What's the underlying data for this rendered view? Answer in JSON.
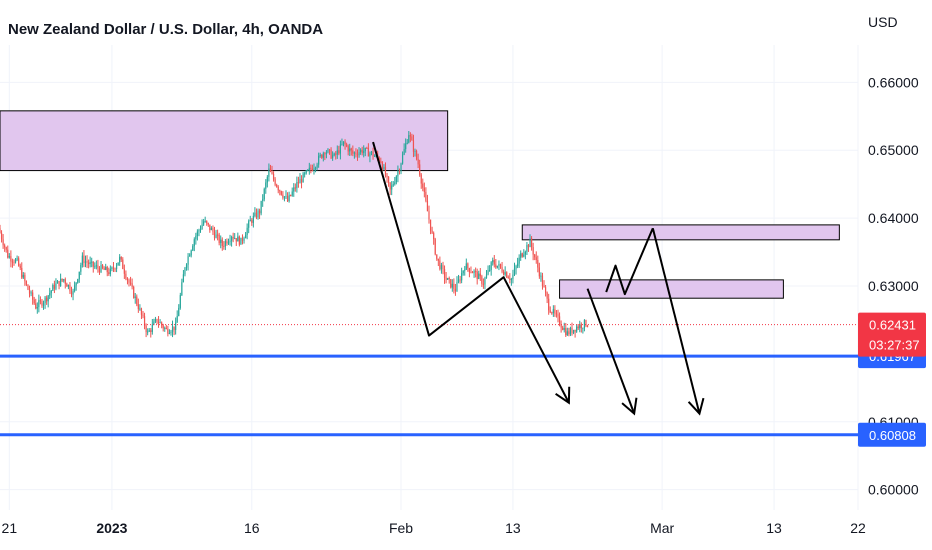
{
  "chart_data": {
    "type": "candlestick",
    "title": "New Zealand Dollar / U.S. Dollar, 4h, OANDA",
    "currency": "USD",
    "y_ticks": [
      "0.66000",
      "0.65000",
      "0.64000",
      "0.63000",
      "0.61000",
      "0.60000"
    ],
    "y_range": [
      0.597,
      0.6655
    ],
    "x_ticks": [
      {
        "label": "21",
        "date": "2022-12-21"
      },
      {
        "label": "2023",
        "date": "2023-01-01"
      },
      {
        "label": "16",
        "date": "2023-01-16"
      },
      {
        "label": "Feb",
        "date": "2023-02-01"
      },
      {
        "label": "13",
        "date": "2023-02-13"
      },
      {
        "label": "Mar",
        "date": "2023-03-01"
      },
      {
        "label": "13",
        "date": "2023-03-13"
      },
      {
        "label": "22",
        "date": "2023-03-22"
      }
    ],
    "x_range": [
      "2022-12-20",
      "2023-03-22"
    ],
    "price_path": [
      [
        "2022-12-20",
        0.6385
      ],
      [
        "2022-12-21",
        0.6345
      ],
      [
        "2022-12-22",
        0.6335
      ],
      [
        "2022-12-23",
        0.63
      ],
      [
        "2022-12-24",
        0.627
      ],
      [
        "2022-12-25",
        0.628
      ],
      [
        "2022-12-26",
        0.63
      ],
      [
        "2022-12-27",
        0.631
      ],
      [
        "2022-12-28",
        0.629
      ],
      [
        "2022-12-29",
        0.634
      ],
      [
        "2022-12-30",
        0.633
      ],
      [
        "2023-01-01",
        0.632
      ],
      [
        "2023-01-02",
        0.634
      ],
      [
        "2023-01-03",
        0.6305
      ],
      [
        "2023-01-04",
        0.627
      ],
      [
        "2023-01-05",
        0.623
      ],
      [
        "2023-01-06",
        0.625
      ],
      [
        "2023-01-07",
        0.6235
      ],
      [
        "2023-01-08",
        0.624
      ],
      [
        "2023-01-09",
        0.633
      ],
      [
        "2023-01-10",
        0.637
      ],
      [
        "2023-01-11",
        0.6395
      ],
      [
        "2023-01-12",
        0.638
      ],
      [
        "2023-01-13",
        0.636
      ],
      [
        "2023-01-14",
        0.6375
      ],
      [
        "2023-01-15",
        0.6365
      ],
      [
        "2023-01-16",
        0.6395
      ],
      [
        "2023-01-17",
        0.641
      ],
      [
        "2023-01-18",
        0.647
      ],
      [
        "2023-01-19",
        0.6445
      ],
      [
        "2023-01-20",
        0.6425
      ],
      [
        "2023-01-21",
        0.645
      ],
      [
        "2023-01-22",
        0.6465
      ],
      [
        "2023-01-23",
        0.648
      ],
      [
        "2023-01-24",
        0.65
      ],
      [
        "2023-01-25",
        0.649
      ],
      [
        "2023-01-26",
        0.651
      ],
      [
        "2023-01-27",
        0.6495
      ],
      [
        "2023-01-28",
        0.65
      ],
      [
        "2023-01-29",
        0.6495
      ],
      [
        "2023-01-30",
        0.6485
      ],
      [
        "2023-01-31",
        0.644
      ],
      [
        "2023-02-01",
        0.6475
      ],
      [
        "2023-02-02",
        0.6525
      ],
      [
        "2023-02-03",
        0.648
      ],
      [
        "2023-02-04",
        0.641
      ],
      [
        "2023-02-05",
        0.634
      ],
      [
        "2023-02-06",
        0.631
      ],
      [
        "2023-02-07",
        0.6295
      ],
      [
        "2023-02-08",
        0.633
      ],
      [
        "2023-02-09",
        0.632
      ],
      [
        "2023-02-10",
        0.6305
      ],
      [
        "2023-02-11",
        0.6335
      ],
      [
        "2023-02-12",
        0.6325
      ],
      [
        "2023-02-13",
        0.631
      ],
      [
        "2023-02-14",
        0.6345
      ],
      [
        "2023-02-15",
        0.6365
      ],
      [
        "2023-02-16",
        0.632
      ],
      [
        "2023-02-17",
        0.627
      ],
      [
        "2023-02-18",
        0.625
      ],
      [
        "2023-02-19",
        0.623
      ],
      [
        "2023-02-20",
        0.624
      ],
      [
        "2023-02-21",
        0.6245
      ]
    ],
    "last_price": "0.62431",
    "countdown": "03:27:37",
    "zones": [
      {
        "from": "2022-12-20",
        "to": "2023-02-06",
        "top": 0.6558,
        "bottom": 0.647
      },
      {
        "from": "2023-02-14",
        "to": "2023-03-20",
        "top": 0.639,
        "bottom": 0.6368
      },
      {
        "from": "2023-02-18",
        "to": "2023-03-14",
        "top": 0.6309,
        "bottom": 0.6282
      }
    ],
    "levels": [
      {
        "value": 0.61967,
        "label": "0.61967",
        "color": "#2962ff"
      },
      {
        "value": 0.60808,
        "label": "0.60808",
        "color": "#2962ff"
      }
    ],
    "projection_paths": [
      {
        "name": "path-1",
        "arrow_end": true,
        "points": [
          [
            "2023-01-29",
            0.6512
          ],
          [
            "2023-02-04",
            0.6227
          ],
          [
            "2023-02-12",
            0.6313
          ],
          [
            "2023-02-19",
            0.6128
          ]
        ]
      },
      {
        "name": "path-2",
        "arrow_end": true,
        "points": [
          [
            "2023-02-21",
            0.6296
          ],
          [
            "2023-02-26",
            0.6112
          ]
        ]
      },
      {
        "name": "path-3",
        "arrow_end": false,
        "points": [
          [
            "2023-02-23",
            0.6291
          ],
          [
            "2023-02-24",
            0.633
          ],
          [
            "2023-02-25",
            0.6288
          ],
          [
            "2023-02-28",
            0.6385
          ]
        ]
      },
      {
        "name": "path-4",
        "arrow_end": true,
        "points": [
          [
            "2023-02-28",
            0.6385
          ],
          [
            "2023-03-05",
            0.6112
          ]
        ]
      }
    ],
    "colors": {
      "up": "#26a69a",
      "down": "#ef5350",
      "zone_fill": "#e1c6ee",
      "level": "#2962ff",
      "price_badge": "#f23645",
      "grid": "#f0f3fa"
    }
  }
}
